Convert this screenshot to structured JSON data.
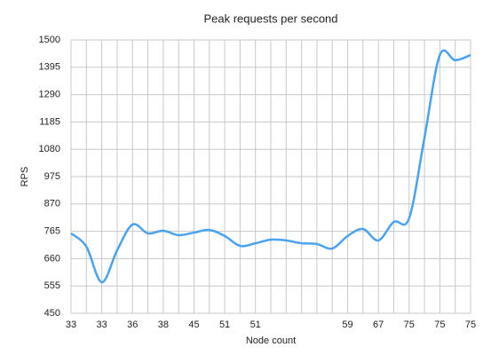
{
  "chart_data": {
    "type": "line",
    "title": "Peak requests per second",
    "x_label": "Node count",
    "y_label": "RPS",
    "categories": [
      "33",
      null,
      "33",
      null,
      "36",
      null,
      "38",
      null,
      "45",
      null,
      "51",
      null,
      "51",
      null,
      null,
      null,
      null,
      null,
      "59",
      null,
      "67",
      null,
      "75",
      null,
      "75",
      null,
      "75"
    ],
    "series": [
      {
        "name": "RPS",
        "color": "#4aa3ee",
        "values": [
          757,
          706,
          569,
          692,
          791,
          757,
          767,
          750,
          760,
          770,
          747,
          709,
          719,
          733,
          730,
          719,
          716,
          699,
          747,
          774,
          730,
          801,
          815,
          1125,
          1442,
          1422,
          1442
        ]
      }
    ],
    "ylim": [
      450,
      1500
    ],
    "yticks": [
      450,
      555,
      660,
      765,
      870,
      975,
      1080,
      1185,
      1290,
      1395,
      1500
    ],
    "grid": true,
    "smooth": true
  }
}
